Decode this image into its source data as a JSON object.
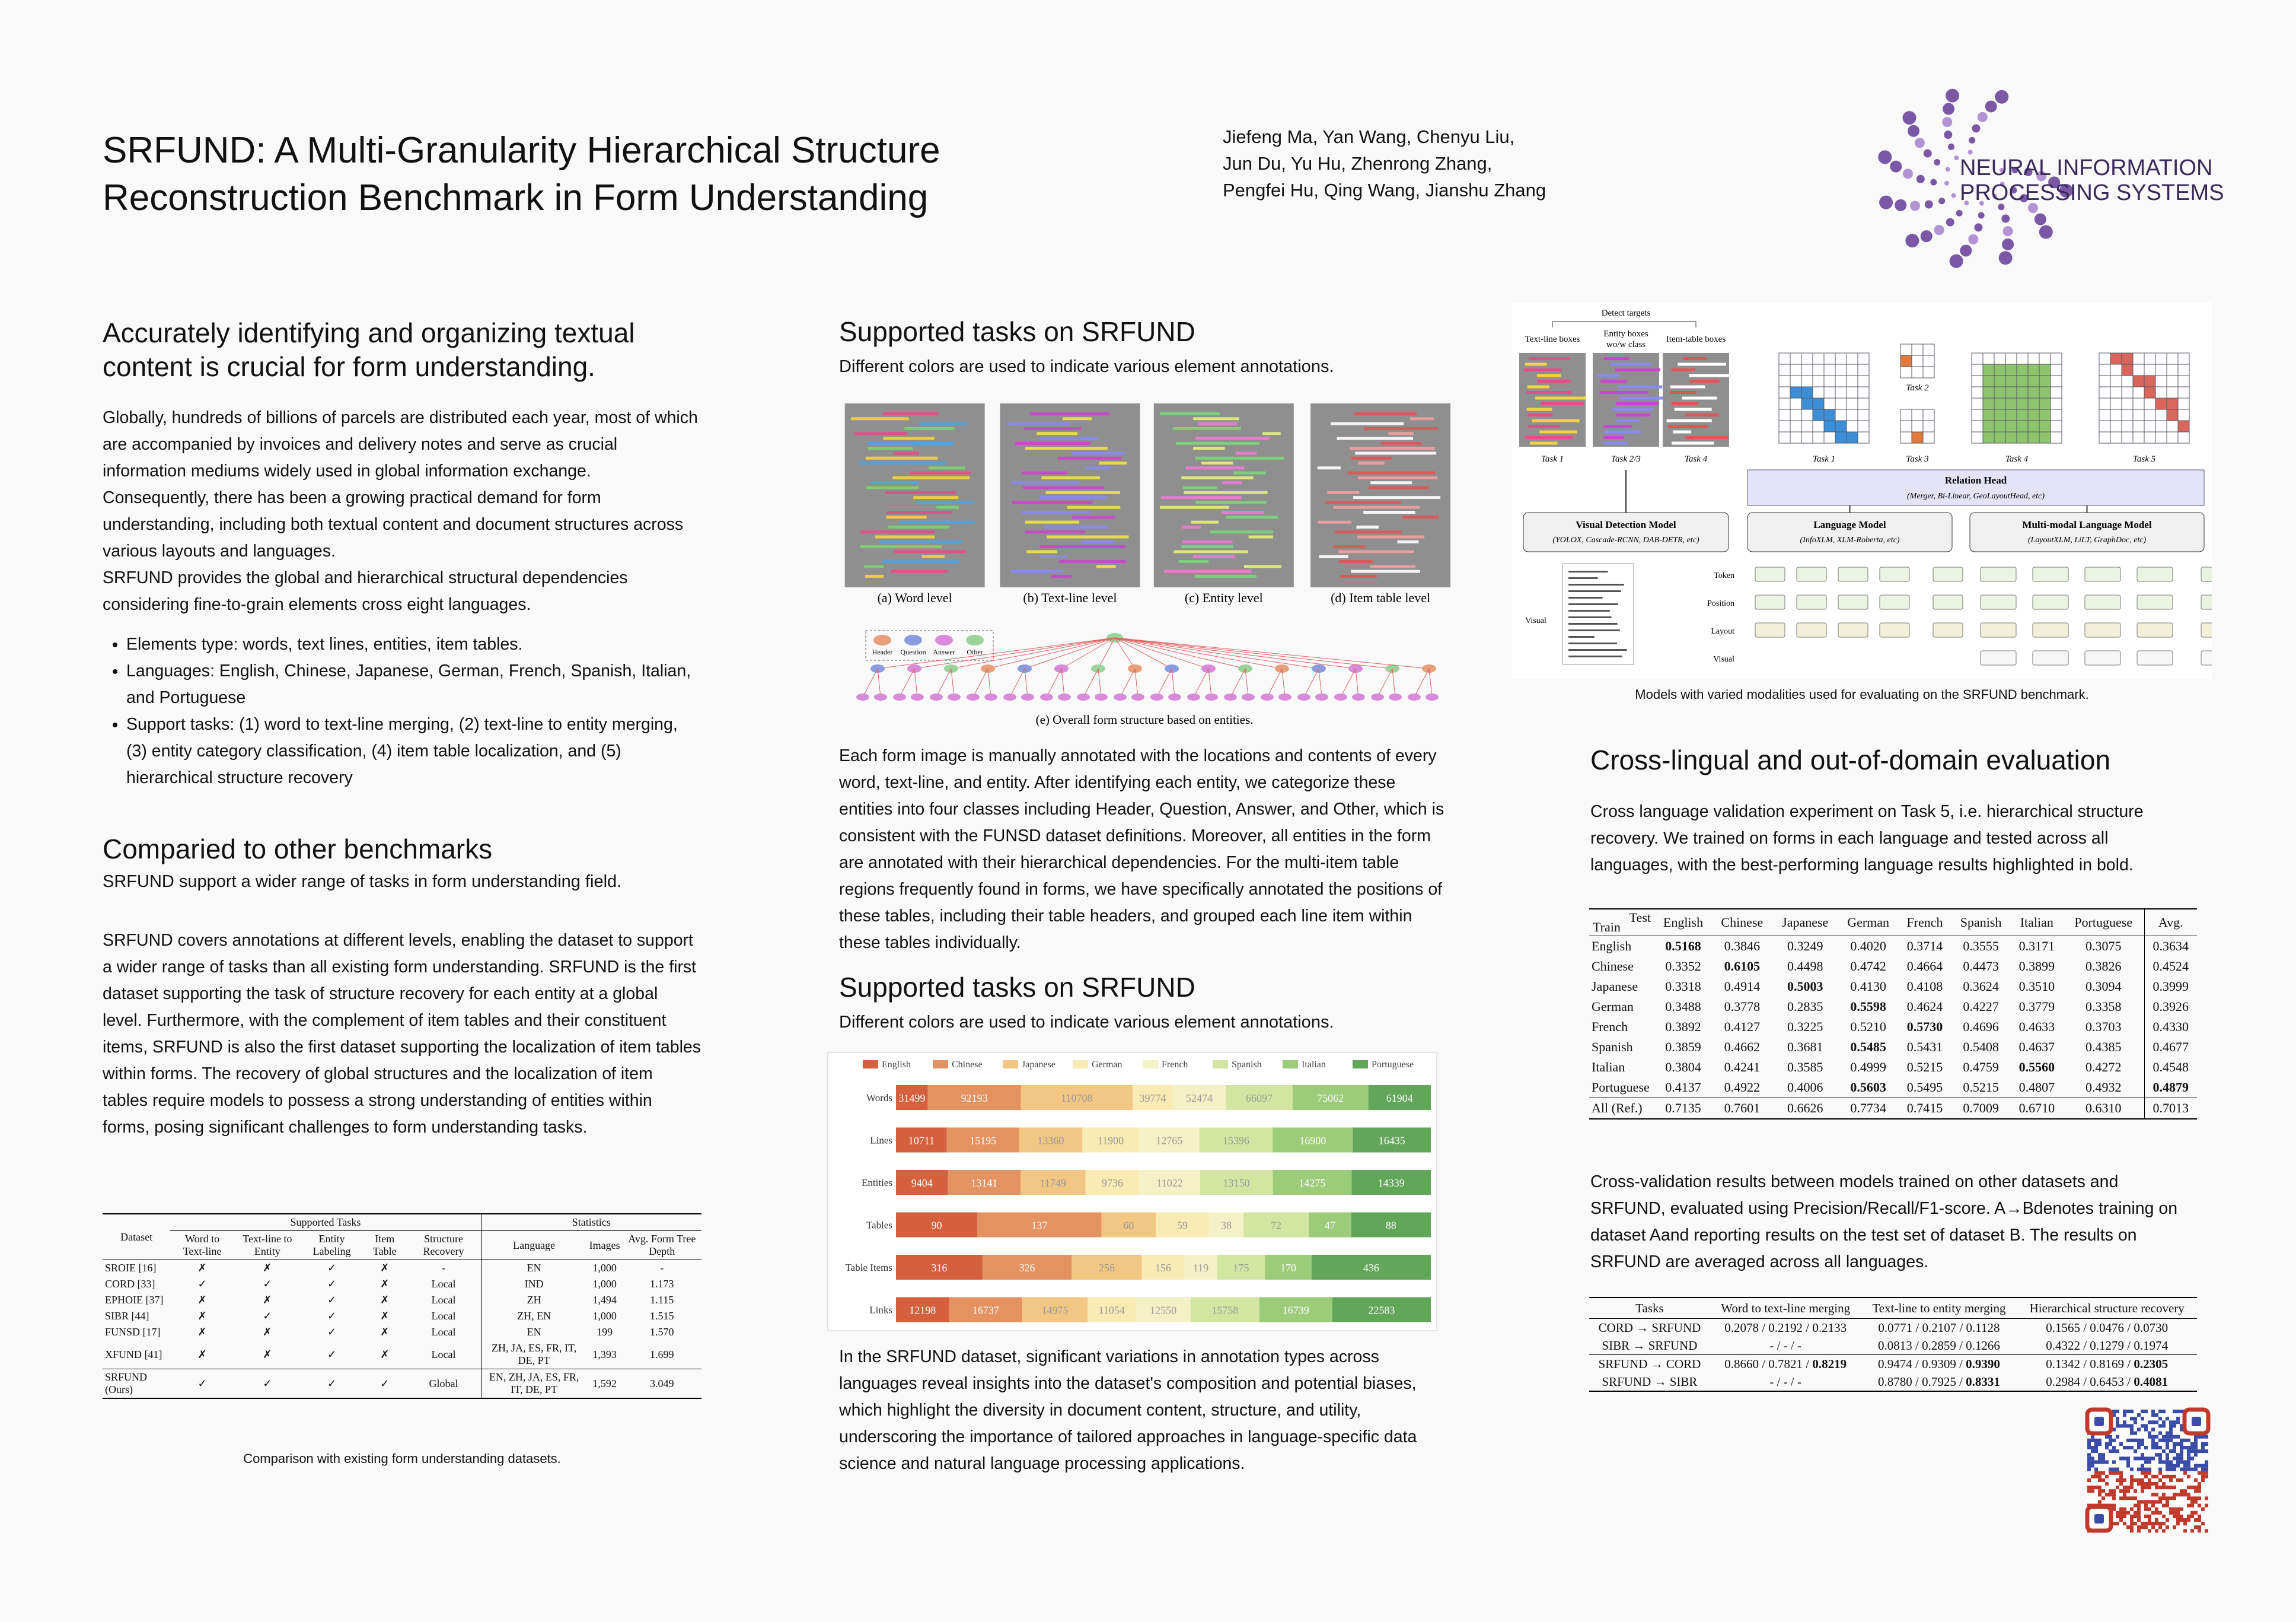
{
  "header": {
    "title_lines": [
      "SRFUND: A Multi-Granularity Hierarchical Structure",
      "Reconstruction Benchmark in Form Understanding"
    ],
    "authors": [
      "Jiefeng Ma, Yan Wang, Chenyu Liu,",
      "Jun Du, Yu Hu, Zhenrong Zhang,",
      "Pengfei Hu, Qing Wang, Jianshu Zhang"
    ],
    "logo": [
      "NEURAL INFORMATION",
      "PROCESSING SYSTEMS"
    ]
  },
  "intro": {
    "heading": "Accurately identifying and organizing textual content is crucial for form understanding.",
    "paragraphs": [
      "Globally, hundreds of billions of parcels are distributed each year, most of which are accompanied by invoices and delivery notes and serve as crucial information mediums widely used in global information exchange. Consequently, there has been a growing practical demand for form understanding, including both textual content and document structures across various layouts and languages.",
      "SRFUND provides the global and hierarchical structural dependencies considering fine-to-grain elements cross eight languages."
    ],
    "bullets": [
      "Elements type: words, text lines, entities, item tables.",
      "Languages: English, Chinese, Japanese, German, French, Spanish, Italian, and Portuguese",
      "Support tasks: (1) word to text-line merging, (2) text-line to entity merging, (3) entity category classification, (4) item table localization, and (5) hierarchical structure recovery"
    ]
  },
  "benchmarks": {
    "heading": "Comparied to other benchmarks",
    "subtitle": "SRFUND support a wider range of tasks in form understanding field.",
    "paragraph": "SRFUND covers annotations at different levels, enabling the dataset to support a wider range of tasks than all existing form understanding. SRFUND is the first dataset supporting the task of structure recovery for each entity at a global level. Furthermore, with the complement of item tables and their constituent items, SRFUND is also the first dataset supporting the localization of item tables within forms. The recovery of global structures and the localization of item tables require models to possess a strong understanding of entities within forms, posing significant challenges to form understanding tasks.",
    "table": {
      "group_headers": [
        "Dataset",
        "Supported Tasks",
        "Statistics"
      ],
      "columns": [
        "Word to Text-line",
        "Text-line to Entity",
        "Entity Labeling",
        "Item Table",
        "Structure Recovery",
        "Language",
        "Images",
        "Avg. Form Tree Depth"
      ],
      "rows": [
        [
          "SROIE [16]",
          "✗",
          "✗",
          "✓",
          "✗",
          "-",
          "EN",
          "1,000",
          "-"
        ],
        [
          "CORD [33]",
          "✓",
          "✓",
          "✓",
          "✗",
          "Local",
          "IND",
          "1,000",
          "1.173"
        ],
        [
          "EPHOIE [37]",
          "✗",
          "✗",
          "✓",
          "✗",
          "Local",
          "ZH",
          "1,494",
          "1.115"
        ],
        [
          "SIBR [44]",
          "✗",
          "✓",
          "✓",
          "✗",
          "Local",
          "ZH, EN",
          "1,000",
          "1.515"
        ],
        [
          "FUNSD [17]",
          "✗",
          "✗",
          "✓",
          "✗",
          "Local",
          "EN",
          "199",
          "1.570"
        ],
        [
          "XFUND [41]",
          "✗",
          "✗",
          "✓",
          "✗",
          "Local",
          "ZH, JA, ES, FR, IT, DE, PT",
          "1,393",
          "1.699"
        ],
        [
          "SRFUND (Ours)",
          "✓",
          "✓",
          "✓",
          "✓",
          "Global",
          "EN, ZH, JA, ES, FR, IT, DE, PT",
          "1,592",
          "3.049"
        ]
      ]
    },
    "caption": "Comparison with existing form understanding datasets."
  },
  "tasks": {
    "heading": "Supported tasks on SRFUND",
    "subtitle": "Different colors are used to indicate various element annotations.",
    "panels": [
      "(a) Word level",
      "(b) Text-line level",
      "(c) Entity level",
      "(d) Item table level"
    ],
    "legend": [
      "Header",
      "Question",
      "Answer",
      "Other"
    ],
    "tree_caption": "(e) Overall form structure based on entities.",
    "paragraph": "Each form image is manually annotated with the locations and contents of every word, text-line, and entity. After identifying each entity, we categorize these entities into four classes including Header, Question, Answer, and Other, which is consistent with the FUNSD dataset definitions. Moreover, all entities in the form are annotated with their hierarchical dependencies. For the multi-item table regions frequently found in forms, we have specifically annotated the positions of these tables, including their table headers, and grouped each line item within these tables individually."
  },
  "stats": {
    "heading": "Supported tasks on SRFUND",
    "subtitle": "Different colors are used to indicate various element annotations.",
    "paragraph": "In the SRFUND dataset, significant variations in annotation types across languages reveal insights into the dataset's composition and potential biases, which highlight the diversity in document content, structure, and utility, underscoring the importance of tailored approaches in language-specific data science and natural language processing applications."
  },
  "chart_data": {
    "type": "bar",
    "orientation": "horizontal",
    "stack": "percent",
    "legend": "top",
    "categories": [
      "Words",
      "Lines",
      "Entities",
      "Tables",
      "Table Items",
      "Links"
    ],
    "series": [
      {
        "name": "English",
        "color": "#d4603d",
        "values": [
          31499,
          10711,
          9404,
          90,
          316,
          12198
        ]
      },
      {
        "name": "Chinese",
        "color": "#e4925f",
        "values": [
          92193,
          15195,
          13141,
          137,
          326,
          16737
        ]
      },
      {
        "name": "Japanese",
        "color": "#f2c683",
        "values": [
          110708,
          13360,
          11749,
          60,
          256,
          14975
        ]
      },
      {
        "name": "German",
        "color": "#f8ebb3",
        "values": [
          39774,
          11900,
          9736,
          59,
          156,
          11054
        ]
      },
      {
        "name": "French",
        "color": "#f5f1c6",
        "values": [
          52474,
          12765,
          11022,
          38,
          119,
          12550
        ]
      },
      {
        "name": "Spanish",
        "color": "#d3e6a1",
        "values": [
          66097,
          15396,
          13150,
          72,
          175,
          15758
        ]
      },
      {
        "name": "Italian",
        "color": "#9ccb79",
        "values": [
          75062,
          16900,
          14275,
          47,
          170,
          16739
        ]
      },
      {
        "name": "Portuguese",
        "color": "#62a659",
        "values": [
          61904,
          16435,
          14339,
          88,
          436,
          22583
        ]
      }
    ]
  },
  "models": {
    "detect_targets": "Detect targets",
    "inputs": [
      [
        "Text-line boxes"
      ],
      [
        "Entity boxes",
        "wo/w class"
      ],
      [
        "Item-table boxes"
      ]
    ],
    "input_tasks": [
      "Task 1",
      "Task 2/3",
      "Task 4"
    ],
    "matrix_tasks": [
      "Task 1",
      "Task 2",
      "Task 3",
      "Task 4",
      "Task 5"
    ],
    "relation_head": {
      "name": "Relation Head",
      "examples": "(Merger, Bi-Linear, GeoLayoutHead, etc)"
    },
    "backbones": [
      {
        "name": "Visual Detection Model",
        "examples": "(YOLOX, Cascade-RCNN, DAB-DETR, etc)"
      },
      {
        "name": "Language Model",
        "examples": "(InfoXLM, XLM-Roberta, etc)"
      },
      {
        "name": "Multi-modal Language Model",
        "examples": "(LayoutXLM, LiLT, GraphDoc, etc)"
      }
    ],
    "inputs_rows": [
      "Token",
      "Position",
      "Layout"
    ],
    "visual": "Visual",
    "caption": "Models with varied modalities used for evaluating on the SRFUND benchmark."
  },
  "evaluation": {
    "heading": "Cross-lingual and out-of-domain evaluation",
    "paragraph": "Cross language validation experiment on Task 5, i.e. hierarchical structure recovery. We trained on forms in each language and tested across all languages, with the best-performing language results highlighted in bold.",
    "cross_lingual": {
      "test": "Test",
      "train": "Train",
      "columns": [
        "English",
        "Chinese",
        "Japanese",
        "German",
        "French",
        "Spanish",
        "Italian",
        "Portuguese",
        "Avg."
      ],
      "rows": [
        {
          "train": "English",
          "values": [
            {
              "text": "0.5168",
              "bold": true
            },
            "0.3846",
            "0.3249",
            "0.4020",
            "0.3714",
            "0.3555",
            "0.3171",
            "0.3075",
            "0.3634"
          ]
        },
        {
          "train": "Chinese",
          "values": [
            "0.3352",
            {
              "text": "0.6105",
              "bold": true
            },
            "0.4498",
            "0.4742",
            "0.4664",
            "0.4473",
            "0.3899",
            "0.3826",
            "0.4524"
          ]
        },
        {
          "train": "Japanese",
          "values": [
            "0.3318",
            "0.4914",
            {
              "text": "0.5003",
              "bold": true
            },
            "0.4130",
            "0.4108",
            "0.3624",
            "0.3510",
            "0.3094",
            "0.3999"
          ]
        },
        {
          "train": "German",
          "values": [
            "0.3488",
            "0.3778",
            "0.2835",
            {
              "text": "0.5598",
              "bold": true
            },
            "0.4624",
            "0.4227",
            "0.3779",
            "0.3358",
            "0.3926"
          ]
        },
        {
          "train": "French",
          "values": [
            "0.3892",
            "0.4127",
            "0.3225",
            "0.5210",
            {
              "text": "0.5730",
              "bold": true
            },
            "0.4696",
            "0.4633",
            "0.3703",
            "0.4330"
          ]
        },
        {
          "train": "Spanish",
          "values": [
            "0.3859",
            "0.4662",
            "0.3681",
            {
              "text": "0.5485",
              "bold": true
            },
            "0.5431",
            "0.5408",
            "0.4637",
            "0.4385",
            "0.4677"
          ]
        },
        {
          "train": "Italian",
          "values": [
            "0.3804",
            "0.4241",
            "0.3585",
            "0.4999",
            "0.5215",
            "0.4759",
            {
              "text": "0.5560",
              "bold": true
            },
            "0.4272",
            "0.4548"
          ]
        },
        {
          "train": "Portuguese",
          "values": [
            "0.4137",
            "0.4922",
            "0.4006",
            {
              "text": "0.5603",
              "bold": true
            },
            "0.5495",
            "0.5215",
            "0.4807",
            "0.4932",
            {
              "text": "0.4879",
              "bold": true
            }
          ]
        },
        {
          "train": "All (Ref.)",
          "values": [
            "0.7135",
            "0.7601",
            "0.6626",
            "0.7734",
            "0.7415",
            "0.7009",
            "0.6710",
            "0.6310",
            "0.7013"
          ]
        }
      ]
    },
    "paragraph2": "Cross-validation results between models trained on other datasets and SRFUND, evaluated using Precision/Recall/F1-score. A→Bdenotes training on dataset Aand reporting results on the test set of dataset B. The results on SRFUND are averaged across all languages.",
    "cross_dataset": {
      "columns": [
        "Tasks",
        "Word to text-line merging",
        "Text-line to entity merging",
        "Hierarchical structure recovery"
      ],
      "rows": [
        [
          "CORD → SRFUND",
          "0.2078 / 0.2192 / 0.2133",
          "0.0771 / 0.2107 / 0.1128",
          "0.1565 / 0.0476 / 0.0730"
        ],
        [
          "SIBR → SRFUND",
          "- / - / -",
          "0.0813 / 0.2859 / 0.1266",
          "0.4322 / 0.1279 / 0.1974"
        ],
        [
          "SRFUND → CORD",
          [
            "0.8660 / 0.7821 / ",
            {
              "text": "0.8219",
              "bold": true
            }
          ],
          [
            "0.9474 / 0.9309 / ",
            {
              "text": "0.9390",
              "bold": true
            }
          ],
          [
            "0.1342 / 0.8169 / ",
            {
              "text": "0.2305",
              "bold": true
            }
          ]
        ],
        [
          "SRFUND → SIBR",
          "- / - / -",
          [
            "0.8780 / 0.7925 / ",
            {
              "text": "0.8331",
              "bold": true
            }
          ],
          [
            "0.2984 / 0.6453 / ",
            {
              "text": "0.4081",
              "bold": true
            }
          ]
        ]
      ]
    }
  }
}
